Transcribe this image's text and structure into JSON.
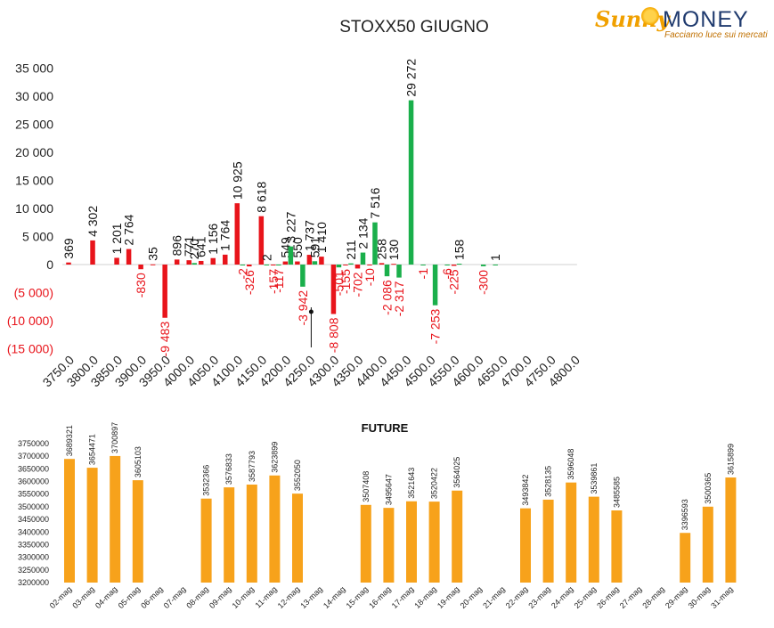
{
  "logo": {
    "brand_left": "Sunny",
    "brand_right": "MONEY",
    "tagline": "Facciamo luce sui mercati"
  },
  "chart_data": [
    {
      "type": "bar",
      "title": "STOXX50 GIUGNO",
      "categories": [
        "3750.0",
        "3775.0",
        "3800.0",
        "3825.0",
        "3850.0",
        "3875.0",
        "3900.0",
        "3925.0",
        "3950.0",
        "3975.0",
        "4000.0",
        "4025.0",
        "4050.0",
        "4075.0",
        "4100.0",
        "4125.0",
        "4150.0",
        "4175.0",
        "4200.0",
        "4225.0",
        "4250.0",
        "4275.0",
        "4300.0",
        "4325.0",
        "4350.0",
        "4375.0",
        "4400.0",
        "4425.0",
        "4450.0",
        "4475.0",
        "4500.0",
        "4525.0",
        "4550.0",
        "4575.0",
        "4600.0",
        "4625.0",
        "4650.0",
        "4675.0",
        "4700.0",
        "4725.0",
        "4750.0",
        "4775.0",
        "4800.0"
      ],
      "x_tick_labels": [
        "3750.0",
        "3800.0",
        "3850.0",
        "3900.0",
        "3950.0",
        "4000.0",
        "4050.0",
        "4100.0",
        "4150.0",
        "4200.0",
        "4250.0",
        "4300.0",
        "4350.0",
        "4400.0",
        "4450.0",
        "4500.0",
        "4550.0",
        "4600.0",
        "4650.0",
        "4700.0",
        "4750.0",
        "4800.0"
      ],
      "ylim": [
        -15000,
        35000
      ],
      "y_ticks": [
        35000,
        30000,
        25000,
        20000,
        15000,
        10000,
        5000,
        0,
        -5000,
        -10000,
        -15000
      ],
      "y_tick_labels": [
        "35 000",
        "30 000",
        "25 000",
        "20 000",
        "15 000",
        "10 000",
        "5 000",
        "0",
        "(5 000)",
        "(10 000)",
        "(15 000)"
      ],
      "series": [
        {
          "color": "#e8141b",
          "values": [
            369,
            null,
            4302,
            null,
            1201,
            2764,
            -830,
            35,
            -9483,
            896,
            771,
            641,
            1156,
            1764,
            10925,
            -326,
            8618,
            -157,
            549,
            550,
            1737,
            1410,
            -8808,
            -155,
            -702,
            -10,
            258,
            130,
            null,
            null,
            null,
            null,
            -225,
            null,
            null,
            null,
            null,
            null,
            null,
            null,
            null,
            null,
            null
          ],
          "labels": [
            "369",
            null,
            "4 302",
            null,
            "1 201",
            "2 764",
            "-830",
            "35",
            "-9 483",
            "896",
            "771",
            "641",
            "1 156",
            "1 764",
            "10 925",
            "-326",
            "8 618",
            "-157",
            "549",
            "550",
            "1 737",
            "1 410",
            "-8 808",
            "-155",
            "-702",
            "-10",
            "258",
            "130",
            null,
            null,
            null,
            null,
            "-225",
            null,
            null,
            null,
            null,
            null,
            null,
            null,
            null,
            null,
            null
          ]
        },
        {
          "color": "#1aaf4b",
          "values": [
            null,
            null,
            null,
            null,
            null,
            null,
            null,
            null,
            null,
            null,
            270,
            null,
            null,
            null,
            -2,
            null,
            2,
            -117,
            3227,
            -3942,
            591,
            null,
            -501,
            211,
            2134,
            7516,
            -2086,
            -2317,
            29272,
            -1,
            -7253,
            -6,
            158,
            null,
            -300,
            1,
            null,
            null,
            null,
            null,
            null,
            null,
            null
          ],
          "labels": [
            null,
            null,
            null,
            null,
            null,
            null,
            null,
            null,
            null,
            null,
            "270",
            null,
            null,
            null,
            "-2",
            null,
            "2",
            "-117",
            "3 227",
            "-3 942",
            "591",
            null,
            "-501",
            "211",
            "2 134",
            "7 516",
            "-2 086",
            "-2 317",
            "29 272",
            "-1",
            "-7 253",
            "-6",
            "158",
            null,
            "-300",
            "1",
            null,
            null,
            null,
            null,
            null,
            null,
            null
          ]
        }
      ]
    },
    {
      "type": "bar",
      "title": "FUTURE",
      "color": "#f7a21b",
      "ylim": [
        3200000,
        3750000
      ],
      "y_ticks": [
        3200000,
        3250000,
        3300000,
        3350000,
        3400000,
        3450000,
        3500000,
        3550000,
        3600000,
        3650000,
        3700000,
        3750000
      ],
      "y_tick_labels": [
        "3200000",
        "3250000",
        "3300000",
        "3350000",
        "3400000",
        "3450000",
        "3500000",
        "3550000",
        "3600000",
        "3650000",
        "3700000",
        "3750000"
      ],
      "categories": [
        "02-mag",
        "03-mag",
        "04-mag",
        "05-mag",
        "06-mag",
        "07-mag",
        "08-mag",
        "09-mag",
        "10-mag",
        "11-mag",
        "12-mag",
        "13-mag",
        "14-mag",
        "15-mag",
        "16-mag",
        "17-mag",
        "18-mag",
        "19-mag",
        "20-mag",
        "21-mag",
        "22-mag",
        "23-mag",
        "24-mag",
        "25-mag",
        "26-mag",
        "27-mag",
        "28-mag",
        "29-mag",
        "30-mag",
        "31-mag"
      ],
      "values": [
        3689321,
        3654471,
        3700897,
        3605103,
        null,
        null,
        3532366,
        3576833,
        3587793,
        3623899,
        3552050,
        null,
        null,
        3507408,
        3495647,
        3521643,
        3520422,
        3564025,
        null,
        null,
        3493842,
        3528135,
        3596048,
        3539861,
        3485585,
        null,
        null,
        3396593,
        3500365,
        3615899
      ],
      "labels": [
        "3689321",
        "3654471",
        "3700897",
        "3605103",
        null,
        null,
        "3532366",
        "3576833",
        "3587793",
        "3623899",
        "3552050",
        null,
        null,
        "3507408",
        "3495647",
        "3521643",
        "3520422",
        "3564025",
        null,
        null,
        "3493842",
        "3528135",
        "3596048",
        "3539861",
        "3485585",
        null,
        null,
        "3396593",
        "3500365",
        "3615899"
      ]
    }
  ]
}
